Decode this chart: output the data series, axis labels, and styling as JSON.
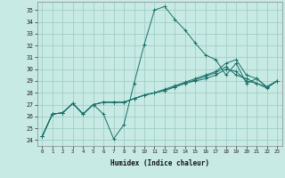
{
  "xlabel": "Humidex (Indice chaleur)",
  "background_color": "#c8eae4",
  "line_color": "#1a7068",
  "grid_color": "#a0cec8",
  "xlim": [
    -0.5,
    23.5
  ],
  "ylim": [
    23.5,
    35.7
  ],
  "yticks": [
    24,
    25,
    26,
    27,
    28,
    29,
    30,
    31,
    32,
    33,
    34,
    35
  ],
  "xticks": [
    0,
    1,
    2,
    3,
    4,
    5,
    6,
    7,
    8,
    9,
    10,
    11,
    12,
    13,
    14,
    15,
    16,
    17,
    18,
    19,
    20,
    21,
    22,
    23
  ],
  "lines": [
    [
      24.3,
      26.2,
      26.3,
      27.1,
      26.2,
      27.0,
      26.2,
      24.1,
      25.3,
      28.8,
      32.1,
      35.0,
      35.3,
      34.2,
      33.3,
      32.2,
      31.2,
      30.8,
      29.5,
      30.5,
      28.8,
      29.2,
      28.5,
      29.0
    ],
    [
      24.3,
      26.2,
      26.3,
      27.1,
      26.2,
      27.0,
      27.2,
      27.2,
      27.2,
      27.5,
      27.8,
      28.0,
      28.2,
      28.5,
      28.8,
      29.1,
      29.4,
      29.7,
      30.2,
      29.5,
      29.2,
      28.8,
      28.4,
      29.0
    ],
    [
      24.3,
      26.2,
      26.3,
      27.1,
      26.2,
      27.0,
      27.2,
      27.2,
      27.2,
      27.5,
      27.8,
      28.0,
      28.3,
      28.6,
      28.9,
      29.2,
      29.5,
      29.8,
      30.5,
      30.8,
      29.5,
      29.2,
      28.5,
      29.0
    ],
    [
      24.3,
      26.2,
      26.3,
      27.1,
      26.2,
      27.0,
      27.2,
      27.2,
      27.2,
      27.5,
      27.8,
      28.0,
      28.2,
      28.5,
      28.8,
      29.0,
      29.2,
      29.5,
      30.0,
      29.8,
      29.0,
      28.8,
      28.5,
      29.0
    ]
  ]
}
